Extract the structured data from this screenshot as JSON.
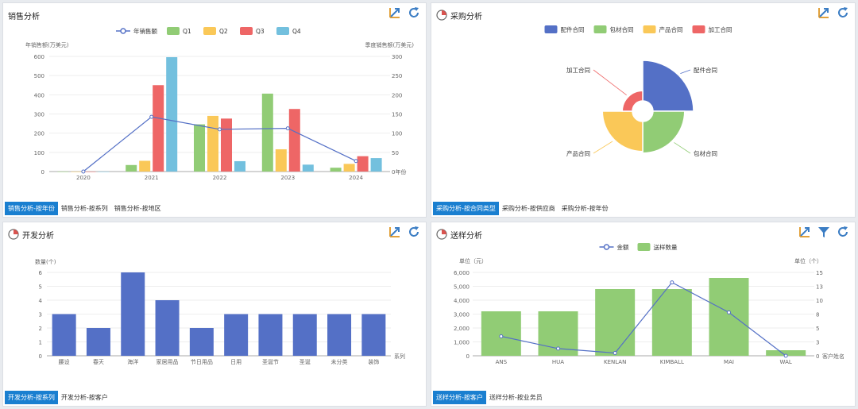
{
  "panels": {
    "sales": {
      "title": "销售分析",
      "tabs": [
        "销售分析-按年份",
        "销售分析-按系列",
        "销售分析-按地区"
      ]
    },
    "purchase": {
      "title": "采购分析",
      "tabs": [
        "采购分析-按合同类型",
        "采购分析-按供应商",
        "采购分析-按年份"
      ]
    },
    "dev": {
      "title": "开发分析",
      "tabs": [
        "开发分析-按系列",
        "开发分析-按客户"
      ]
    },
    "sample": {
      "title": "送样分析",
      "tabs": [
        "送样分析-按客户",
        "送样分析-按业务员"
      ]
    }
  },
  "colors": {
    "blue": "#5470c6",
    "green": "#91cc75",
    "yellow": "#fac858",
    "red": "#ee6666",
    "cyan": "#73c0de",
    "tab_active": "#1a7fd0"
  },
  "chart_data": [
    {
      "type": "bar",
      "categories": [
        "2020",
        "2021",
        "2022",
        "2023",
        "2024"
      ],
      "series": [
        {
          "name": "年销售额",
          "kind": "line",
          "axis": "left",
          "values": [
            0,
            285,
            220,
            225,
            55
          ]
        },
        {
          "name": "Q1",
          "values": [
            0,
            17,
            123,
            203,
            10
          ]
        },
        {
          "name": "Q2",
          "values": [
            0,
            28,
            145,
            58,
            20
          ]
        },
        {
          "name": "Q3",
          "values": [
            0,
            225,
            138,
            163,
            40
          ]
        },
        {
          "name": "Q4",
          "values": [
            0,
            298,
            27,
            18,
            35
          ]
        }
      ],
      "ylabel": "年销售额(万美元)",
      "ylabel_right": "季度销售额(万美元)",
      "ylim": [
        0,
        600
      ],
      "ylim_right": [
        0,
        300
      ],
      "yticks": [
        "0",
        "100",
        "200",
        "300",
        "400",
        "500",
        "600"
      ],
      "yticks_right": [
        "0年份",
        "50",
        "100",
        "150",
        "200",
        "250",
        "300"
      ],
      "grid": true,
      "legend": "top-center"
    },
    {
      "type": "pie",
      "subtype": "rose",
      "slices": [
        {
          "name": "配件合同",
          "value": 100
        },
        {
          "name": "包材合同",
          "value": 78
        },
        {
          "name": "产品合同",
          "value": 74
        },
        {
          "name": "加工合同",
          "value": 25
        }
      ],
      "legend": "top-center"
    },
    {
      "type": "bar",
      "categories": [
        "腰设",
        "春天",
        "海洋",
        "家居用品",
        "节日用品",
        "日用",
        "圣诞节",
        "圣诞",
        "未分类",
        "装饰"
      ],
      "values": [
        3,
        2,
        6,
        4,
        2,
        3,
        3,
        3,
        3,
        3
      ],
      "ylabel": "数量(个)",
      "xlabel": "系列",
      "ylim": [
        0,
        6
      ],
      "yticks": [
        "0",
        "1",
        "2",
        "3",
        "4",
        "5",
        "6"
      ],
      "grid": true
    },
    {
      "type": "bar",
      "categories": [
        "ANS",
        "HUA",
        "KENLAN",
        "KIMBALL",
        "MAI",
        "WAL"
      ],
      "series": [
        {
          "name": "金额",
          "kind": "line",
          "axis": "right",
          "values": [
            3.5,
            1.3,
            0.5,
            13.2,
            7.8,
            0
          ]
        },
        {
          "name": "送样数量",
          "kind": "bar",
          "axis": "left",
          "values": [
            3200,
            3200,
            4800,
            4800,
            5600,
            400
          ]
        }
      ],
      "ylabel": "单位（元）",
      "ylabel_right": "单位（个）",
      "xlabel": "客户姓名",
      "ylim": [
        0,
        6000
      ],
      "ylim_right": [
        0,
        15
      ],
      "yticks": [
        "0",
        "1,000",
        "2,000",
        "3,000",
        "4,000",
        "5,000",
        "6,000"
      ],
      "yticks_right": [
        "0",
        "3",
        "5",
        "8",
        "10",
        "13",
        "15"
      ],
      "grid": true,
      "legend": "top-center"
    }
  ]
}
